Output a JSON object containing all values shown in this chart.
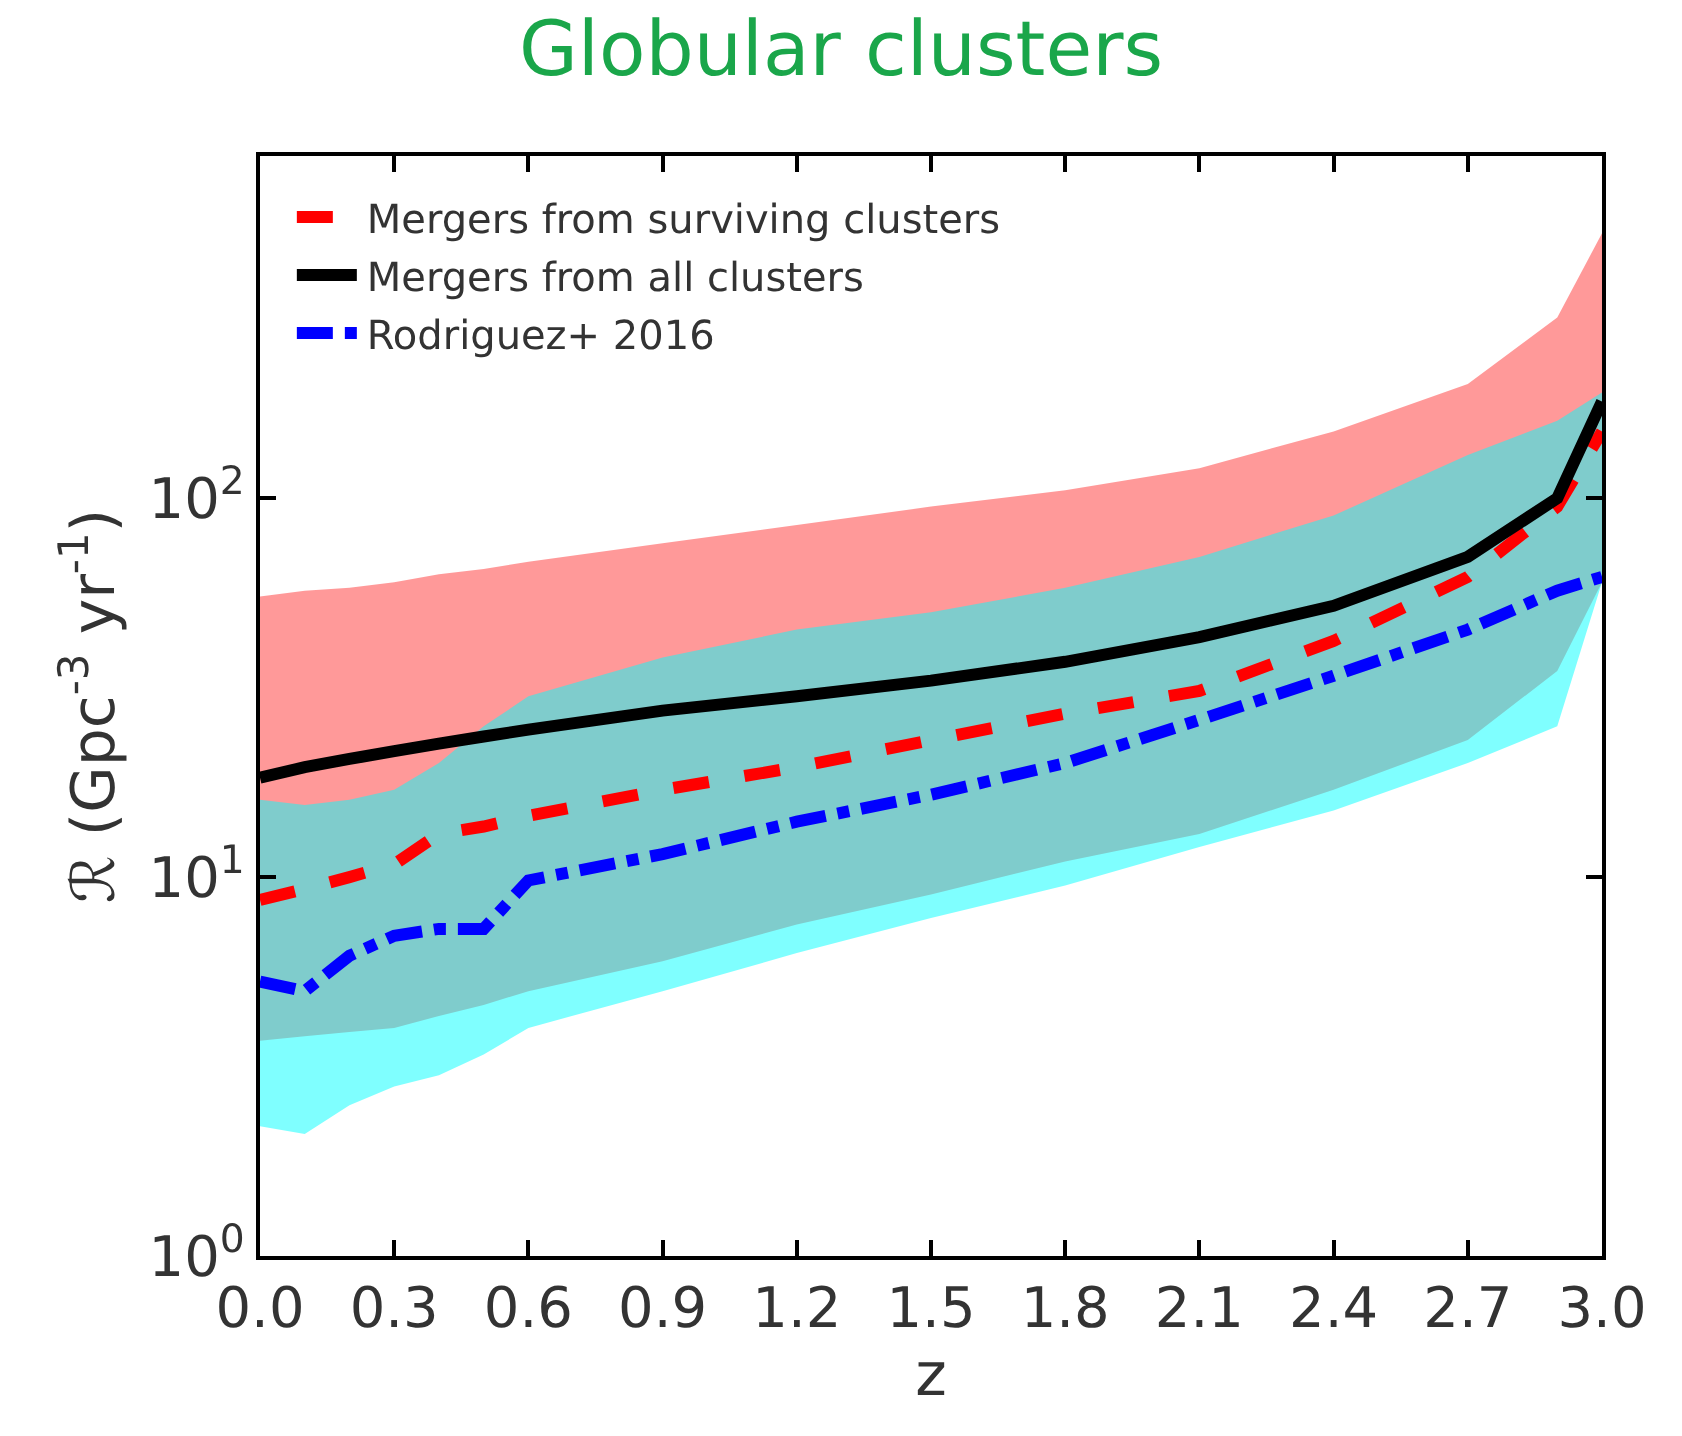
{
  "chart_data": {
    "type": "line",
    "title": "Globular clusters",
    "xlabel": "z",
    "ylabel": "ℛ (Gpc$^{-3}$ yr$^{-1}$)",
    "xlim": [
      0,
      3.0
    ],
    "ylim": [
      1,
      800
    ],
    "log": "y",
    "legend": "top left",
    "xticks": [
      {
        "value": 0,
        "label": "0.0"
      },
      {
        "value": 0.3,
        "label": "0.3"
      },
      {
        "value": 0.6,
        "label": "0.6"
      },
      {
        "value": 0.9,
        "label": "0.9"
      },
      {
        "value": 1.2,
        "label": "1.2"
      },
      {
        "value": 1.5,
        "label": "1.5"
      },
      {
        "value": 1.8,
        "label": "1.8"
      },
      {
        "value": 2.1,
        "label": "2.1"
      },
      {
        "value": 2.4,
        "label": "2.4"
      },
      {
        "value": 2.7,
        "label": "2.7"
      },
      {
        "value": 3.0,
        "label": "3.0"
      }
    ],
    "yticks": [
      {
        "value": 1,
        "label": "10$^{0}$"
      },
      {
        "value": 10,
        "label": "10$^{1}$"
      },
      {
        "value": 100,
        "label": "10$^{2}$"
      }
    ],
    "x": [
      0,
      0.1,
      0.2,
      0.3,
      0.4,
      0.5,
      0.6,
      0.9,
      1.2,
      1.5,
      1.8,
      2.1,
      2.4,
      2.7,
      2.9,
      3.0
    ],
    "series": [
      {
        "name": "Mergers from surviving clusters",
        "color": "#ff0000",
        "line_style": "dashed",
        "values": [
          8.7,
          9.3,
          10,
          10.8,
          13,
          13.6,
          14.5,
          17,
          19.5,
          23,
          27,
          31,
          42,
          62,
          95,
          150
        ],
        "lower": [
          3.7,
          3.8,
          3.9,
          4.0,
          4.3,
          4.6,
          5.0,
          6.0,
          7.5,
          9,
          11,
          13,
          17,
          23,
          35,
          60
        ],
        "upper": [
          55,
          57,
          58,
          60,
          63,
          65,
          68,
          76,
          85,
          95,
          105,
          120,
          150,
          200,
          300,
          500
        ]
      },
      {
        "name": "Mergers from all clusters",
        "color": "#000000",
        "line_style": "solid",
        "values": [
          18.3,
          19.5,
          20.5,
          21.5,
          22.5,
          23.5,
          24.5,
          27.5,
          30,
          33,
          37,
          43,
          52,
          70,
          100,
          180
        ]
      },
      {
        "name": "Rodriguez+ 2016",
        "color": "#0000ff",
        "line_style": "dashdot",
        "values": [
          5.3,
          5.0,
          6.2,
          7.0,
          7.3,
          7.3,
          9.8,
          11.5,
          14,
          16.5,
          20,
          26,
          34,
          45,
          57,
          62
        ],
        "lower": [
          2.2,
          2.1,
          2.5,
          2.8,
          3.0,
          3.4,
          4.0,
          5.0,
          6.3,
          7.8,
          9.5,
          12,
          15,
          20,
          25,
          60
        ],
        "upper": [
          16,
          15.5,
          16,
          17,
          20,
          25,
          30,
          38,
          45,
          50,
          58,
          70,
          90,
          130,
          160,
          190
        ]
      }
    ]
  }
}
